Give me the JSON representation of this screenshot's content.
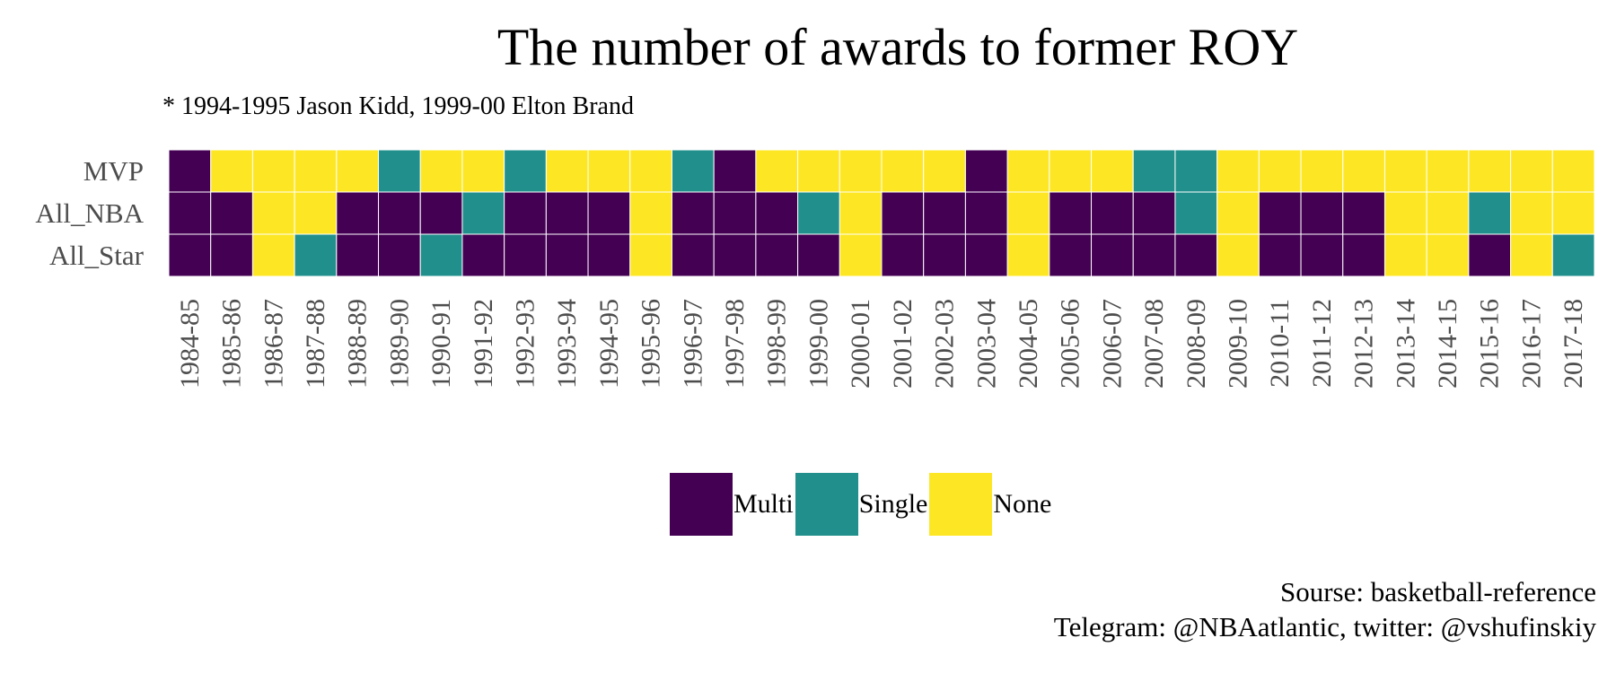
{
  "chart_data": {
    "type": "heatmap",
    "title": "The number of awards to former ROY",
    "subtitle": "* 1994-1995 Jason Kidd, 1999-00 Elton Brand",
    "caption_lines": [
      "Sourse: basketball-reference",
      "Telegram: @NBAatlantic, twitter: @vshufinskiy"
    ],
    "x_categories": [
      "1984-85",
      "1985-86",
      "1986-87",
      "1987-88",
      "1988-89",
      "1989-90",
      "1990-91",
      "1991-92",
      "1992-93",
      "1993-94",
      "1994-95",
      "1995-96",
      "1996-97",
      "1997-98",
      "1998-99",
      "1999-00",
      "2000-01",
      "2001-02",
      "2002-03",
      "2003-04",
      "2004-05",
      "2005-06",
      "2006-07",
      "2007-08",
      "2008-09",
      "2009-10",
      "2010-11",
      "2011-12",
      "2012-13",
      "2013-14",
      "2014-15",
      "2015-16",
      "2016-17",
      "2017-18"
    ],
    "y_categories": [
      "MVP",
      "All_NBA",
      "All_Star"
    ],
    "legend": {
      "position": "bottom",
      "entries": [
        {
          "label": "Multi",
          "color": "#440154"
        },
        {
          "label": "Single",
          "color": "#21908C"
        },
        {
          "label": "None",
          "color": "#FDE725"
        }
      ]
    },
    "values": {
      "MVP": [
        "Multi",
        "None",
        "None",
        "None",
        "None",
        "Single",
        "None",
        "None",
        "Single",
        "None",
        "None",
        "None",
        "Single",
        "Multi",
        "None",
        "None",
        "None",
        "None",
        "None",
        "Multi",
        "None",
        "None",
        "None",
        "Single",
        "Single",
        "None",
        "None",
        "None",
        "None",
        "None",
        "None",
        "None",
        "None",
        "None"
      ],
      "All_NBA": [
        "Multi",
        "Multi",
        "None",
        "None",
        "Multi",
        "Multi",
        "Multi",
        "Single",
        "Multi",
        "Multi",
        "Multi",
        "None",
        "Multi",
        "Multi",
        "Multi",
        "Single",
        "None",
        "Multi",
        "Multi",
        "Multi",
        "None",
        "Multi",
        "Multi",
        "Multi",
        "Single",
        "None",
        "Multi",
        "Multi",
        "Multi",
        "None",
        "None",
        "Single",
        "None",
        "None"
      ],
      "All_Star": [
        "Multi",
        "Multi",
        "None",
        "Single",
        "Multi",
        "Multi",
        "Single",
        "Multi",
        "Multi",
        "Multi",
        "Multi",
        "None",
        "Multi",
        "Multi",
        "Multi",
        "Multi",
        "None",
        "Multi",
        "Multi",
        "Multi",
        "None",
        "Multi",
        "Multi",
        "Multi",
        "Multi",
        "None",
        "Multi",
        "Multi",
        "Multi",
        "None",
        "None",
        "Multi",
        "None",
        "Single"
      ]
    },
    "grid": false
  }
}
